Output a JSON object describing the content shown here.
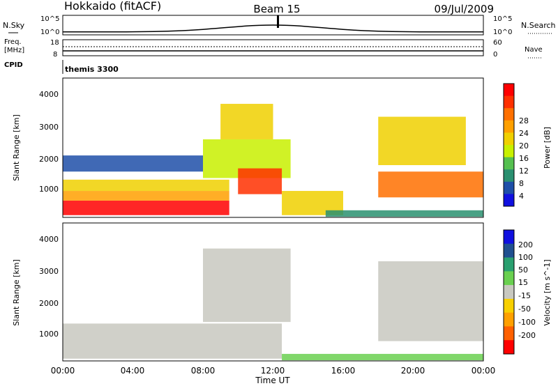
{
  "header": {
    "title": "Hokkaido (fitACF)",
    "beam": "Beam 15",
    "date": "09/Jul/2009"
  },
  "summary_panel": {
    "nsky_label": "N.Sky",
    "nsearch_label": "N.Search",
    "noise_ticks": [
      "10^5",
      "10^0"
    ],
    "freq_label": "Freq.",
    "freq_unit": "[MHz]",
    "freq_ticks": [
      "18",
      "8"
    ],
    "nave_label": "Nave",
    "nave_ticks": [
      "60",
      "0"
    ],
    "cpid_label": "CPID",
    "cpid_value": "themis 3300"
  },
  "power_panel": {
    "ylabel": "Slant Range [km]",
    "yticks": [
      "4000",
      "3000",
      "2000",
      "1000"
    ],
    "colorbar_label": "Power [dB]",
    "colorbar_ticks": [
      "28",
      "24",
      "20",
      "16",
      "12",
      "8",
      "4"
    ],
    "colors": [
      "#ff0000",
      "#ff3000",
      "#ff7000",
      "#ffa000",
      "#f0d000",
      "#c8f000",
      "#55c050",
      "#2a9070",
      "#1e4fa8",
      "#1010e0"
    ]
  },
  "velocity_panel": {
    "ylabel": "Slant Range [km]",
    "yticks": [
      "4000",
      "3000",
      "2000",
      "1000"
    ],
    "colorbar_label": "Velocity [m s^-1]",
    "colorbar_ticks": [
      "200",
      "100",
      "50",
      "15",
      "-15",
      "-50",
      "-100",
      "-200"
    ],
    "colors": [
      "#1010e0",
      "#205090",
      "#2aa070",
      "#6ad050",
      "#c8c8c0",
      "#f8d000",
      "#ffa000",
      "#ff6000",
      "#ff0000"
    ]
  },
  "xaxis": {
    "label": "Time UT",
    "ticks": [
      "00:00",
      "04:00",
      "08:00",
      "12:00",
      "16:00",
      "20:00",
      "00:00"
    ]
  },
  "chart_data": {
    "type": "heatmap",
    "title": "Hokkaido (fitACF)",
    "subtitle": "Beam 15",
    "date": "09/Jul/2009",
    "xlabel": "Time UT",
    "ylabel": "Slant Range [km]",
    "xlim_hours": [
      0,
      24
    ],
    "ylim_km": [
      180,
      4500
    ],
    "panels": [
      {
        "name": "Power",
        "colorbar": "Power [dB]",
        "clim": [
          0,
          30
        ],
        "regions": [
          {
            "t0": 0,
            "t1": 9.5,
            "r0": 250,
            "r1": 700,
            "value": 28
          },
          {
            "t0": 0,
            "t1": 9.5,
            "r0": 700,
            "r1": 1000,
            "value": 20
          },
          {
            "t0": 0,
            "t1": 9.5,
            "r0": 1000,
            "r1": 1350,
            "value": 16
          },
          {
            "t0": 0,
            "t1": 8,
            "r0": 1600,
            "r1": 2100,
            "value": 6
          },
          {
            "t0": 8,
            "t1": 13,
            "r0": 1400,
            "r1": 2600,
            "value": 14
          },
          {
            "t0": 9,
            "t1": 12,
            "r0": 2600,
            "r1": 3700,
            "value": 16
          },
          {
            "t0": 10,
            "t1": 12.5,
            "r0": 900,
            "r1": 1700,
            "value": 26
          },
          {
            "t0": 12.5,
            "t1": 16,
            "r0": 250,
            "r1": 1000,
            "value": 18
          },
          {
            "t0": 15,
            "t1": 24,
            "r0": 200,
            "r1": 400,
            "value": 8
          },
          {
            "t0": 18,
            "t1": 24,
            "r0": 800,
            "r1": 1600,
            "value": 22
          },
          {
            "t0": 18,
            "t1": 23,
            "r0": 1800,
            "r1": 3300,
            "value": 16
          }
        ]
      },
      {
        "name": "Velocity",
        "colorbar": "Velocity [m s^-1]",
        "clim": [
          -200,
          200
        ],
        "regions": [
          {
            "t0": 0,
            "t1": 12.5,
            "r0": 250,
            "r1": 1350,
            "value": 0
          },
          {
            "t0": 8,
            "t1": 13,
            "r0": 1400,
            "r1": 3700,
            "value": 0
          },
          {
            "t0": 12.5,
            "t1": 24,
            "r0": 200,
            "r1": 400,
            "value": 30
          },
          {
            "t0": 18,
            "t1": 24,
            "r0": 800,
            "r1": 3300,
            "value": 0
          }
        ]
      }
    ]
  }
}
